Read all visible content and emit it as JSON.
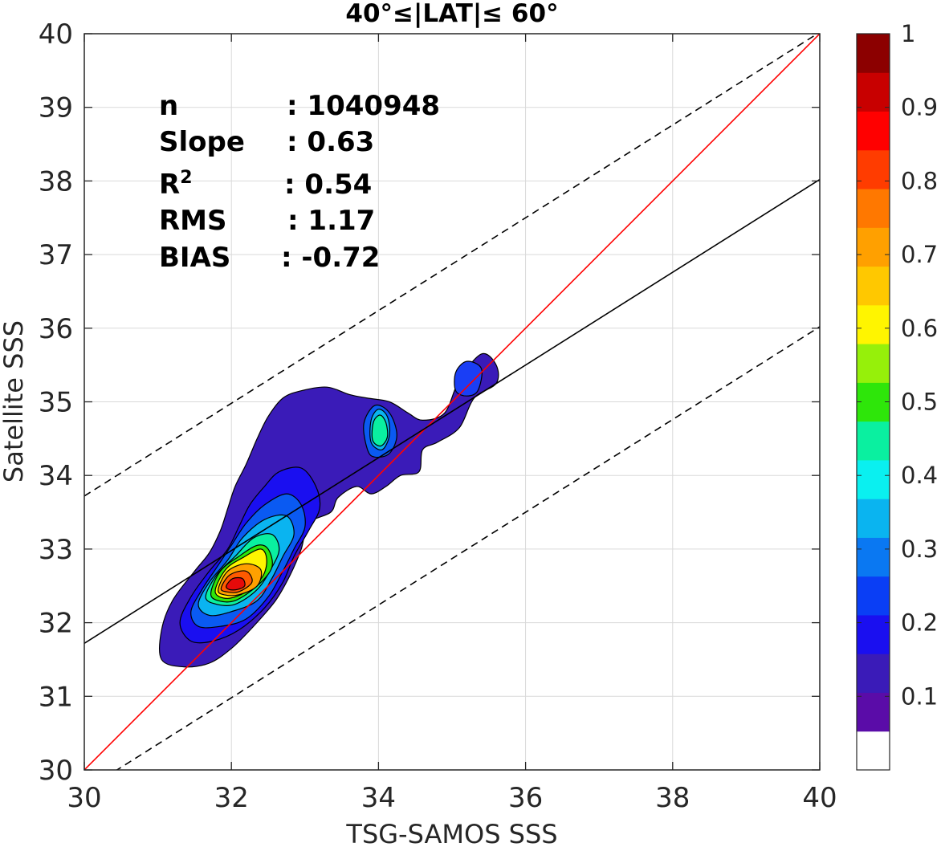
{
  "chart_data": {
    "type": "contour",
    "title": "40°≤|LAT|≤ 60°",
    "xlabel": "TSG-SAMOS SSS",
    "ylabel": "Satellite SSS",
    "xlim": [
      30,
      40
    ],
    "ylim": [
      30,
      40
    ],
    "xticks": [
      "30",
      "32",
      "34",
      "36",
      "38",
      "40"
    ],
    "yticks": [
      "30",
      "31",
      "32",
      "33",
      "34",
      "35",
      "36",
      "37",
      "38",
      "39",
      "40"
    ],
    "grid": true,
    "stats": [
      {
        "label": "n",
        "value": ": 1040948"
      },
      {
        "label": "Slope",
        "value": ": 0.63"
      },
      {
        "label": "R",
        "sup": "2",
        "value": ": 0.54"
      },
      {
        "label": "RMS",
        "value": ": 1.17"
      },
      {
        "label": "BIAS",
        "value": ": -0.72"
      }
    ],
    "lines": [
      {
        "role": "one-to-one",
        "color": "#ff0000",
        "style": "solid",
        "slope": 1.0,
        "intercept": 0
      },
      {
        "role": "regression",
        "color": "#000000",
        "style": "solid",
        "slope": 0.63,
        "intercept": 12.82
      },
      {
        "role": "upper-bound",
        "color": "#000000",
        "style": "dashed",
        "slope": 0.63,
        "intercept": 14.82
      },
      {
        "role": "lower-bound",
        "color": "#000000",
        "style": "dashed",
        "slope": 0.63,
        "intercept": 10.82
      }
    ],
    "contours": [
      {
        "level": 0.05,
        "color": "#3a1bb8",
        "points": [
          [
            31.05,
            31.9
          ],
          [
            31.2,
            32.3
          ],
          [
            31.5,
            32.7
          ],
          [
            31.7,
            32.95
          ],
          [
            31.85,
            33.25
          ],
          [
            31.95,
            33.55
          ],
          [
            32.05,
            33.85
          ],
          [
            32.2,
            34.15
          ],
          [
            32.35,
            34.5
          ],
          [
            32.5,
            34.8
          ],
          [
            32.7,
            35.05
          ],
          [
            32.95,
            35.15
          ],
          [
            33.3,
            35.2
          ],
          [
            33.6,
            35.1
          ],
          [
            33.85,
            35.05
          ],
          [
            34.15,
            35.0
          ],
          [
            34.4,
            34.85
          ],
          [
            34.6,
            34.75
          ],
          [
            34.9,
            34.85
          ],
          [
            35.1,
            35.3
          ],
          [
            35.4,
            35.65
          ],
          [
            35.6,
            35.5
          ],
          [
            35.6,
            35.25
          ],
          [
            35.3,
            35.05
          ],
          [
            35.1,
            34.65
          ],
          [
            34.8,
            34.45
          ],
          [
            34.6,
            34.35
          ],
          [
            34.55,
            34.05
          ],
          [
            34.3,
            34.0
          ],
          [
            34.1,
            33.85
          ],
          [
            33.9,
            33.75
          ],
          [
            33.7,
            33.85
          ],
          [
            33.45,
            33.7
          ],
          [
            33.35,
            33.5
          ],
          [
            33.05,
            33.35
          ],
          [
            32.95,
            33.0
          ],
          [
            32.8,
            32.65
          ],
          [
            32.6,
            32.3
          ],
          [
            32.3,
            31.95
          ],
          [
            32.0,
            31.65
          ],
          [
            31.7,
            31.45
          ],
          [
            31.35,
            31.4
          ],
          [
            31.05,
            31.5
          ]
        ]
      },
      {
        "level": 0.1,
        "color": "#1a0ff0",
        "points": [
          [
            31.3,
            32.0
          ],
          [
            31.45,
            32.35
          ],
          [
            31.7,
            32.7
          ],
          [
            31.95,
            33.0
          ],
          [
            32.1,
            33.3
          ],
          [
            32.25,
            33.6
          ],
          [
            32.45,
            33.85
          ],
          [
            32.65,
            34.05
          ],
          [
            32.95,
            34.1
          ],
          [
            33.15,
            33.85
          ],
          [
            33.2,
            33.55
          ],
          [
            33.05,
            33.25
          ],
          [
            32.85,
            32.9
          ],
          [
            32.7,
            32.55
          ],
          [
            32.45,
            32.2
          ],
          [
            32.1,
            31.9
          ],
          [
            31.75,
            31.75
          ],
          [
            31.45,
            31.75
          ]
        ]
      },
      {
        "level": 0.2,
        "color": "#0a5af2",
        "points": [
          [
            31.45,
            32.15
          ],
          [
            31.6,
            32.45
          ],
          [
            31.8,
            32.75
          ],
          [
            32.0,
            33.05
          ],
          [
            32.2,
            33.35
          ],
          [
            32.45,
            33.6
          ],
          [
            32.75,
            33.75
          ],
          [
            32.95,
            33.6
          ],
          [
            33.0,
            33.3
          ],
          [
            32.85,
            33.0
          ],
          [
            32.7,
            32.7
          ],
          [
            32.5,
            32.35
          ],
          [
            32.2,
            32.05
          ],
          [
            31.85,
            31.95
          ],
          [
            31.55,
            31.95
          ]
        ]
      },
      {
        "level": 0.3,
        "color": "#0ab4f0",
        "points": [
          [
            31.55,
            32.25
          ],
          [
            31.7,
            32.55
          ],
          [
            31.95,
            32.85
          ],
          [
            32.15,
            33.15
          ],
          [
            32.45,
            33.4
          ],
          [
            32.75,
            33.45
          ],
          [
            32.85,
            33.2
          ],
          [
            32.7,
            32.9
          ],
          [
            32.55,
            32.6
          ],
          [
            32.35,
            32.3
          ],
          [
            32.0,
            32.15
          ],
          [
            31.7,
            32.1
          ]
        ]
      },
      {
        "level": 0.4,
        "color": "#0af0a0",
        "points": [
          [
            31.65,
            32.35
          ],
          [
            31.8,
            32.65
          ],
          [
            32.05,
            32.9
          ],
          [
            32.3,
            33.15
          ],
          [
            32.55,
            33.2
          ],
          [
            32.65,
            33.0
          ],
          [
            32.55,
            32.75
          ],
          [
            32.35,
            32.45
          ],
          [
            32.05,
            32.25
          ],
          [
            31.8,
            32.25
          ]
        ]
      },
      {
        "level": 0.5,
        "color": "#2ee60a",
        "points": [
          [
            31.72,
            32.4
          ],
          [
            31.85,
            32.7
          ],
          [
            32.1,
            32.9
          ],
          [
            32.35,
            33.05
          ],
          [
            32.5,
            33.0
          ],
          [
            32.55,
            32.75
          ],
          [
            32.35,
            32.5
          ],
          [
            32.05,
            32.3
          ],
          [
            31.82,
            32.3
          ]
        ]
      },
      {
        "level": 0.6,
        "color": "#fff500",
        "points": [
          [
            31.78,
            32.42
          ],
          [
            31.92,
            32.72
          ],
          [
            32.15,
            32.88
          ],
          [
            32.4,
            33.0
          ],
          [
            32.48,
            32.85
          ],
          [
            32.42,
            32.62
          ],
          [
            32.2,
            32.42
          ],
          [
            31.95,
            32.33
          ]
        ]
      },
      {
        "level": 0.7,
        "color": "#ffa000",
        "points": [
          [
            31.82,
            32.45
          ],
          [
            31.95,
            32.7
          ],
          [
            32.2,
            32.8
          ],
          [
            32.4,
            32.72
          ],
          [
            32.35,
            32.5
          ],
          [
            32.1,
            32.38
          ],
          [
            31.9,
            32.38
          ]
        ]
      },
      {
        "level": 0.8,
        "color": "#ff5a00",
        "points": [
          [
            31.86,
            32.47
          ],
          [
            31.98,
            32.65
          ],
          [
            32.2,
            32.7
          ],
          [
            32.28,
            32.55
          ],
          [
            32.1,
            32.42
          ],
          [
            31.93,
            32.42
          ]
        ]
      },
      {
        "level": 0.9,
        "color": "#e60a0a",
        "points": [
          [
            31.93,
            32.5
          ],
          [
            32.02,
            32.6
          ],
          [
            32.15,
            32.6
          ],
          [
            32.18,
            32.5
          ],
          [
            32.08,
            32.45
          ],
          [
            31.97,
            32.45
          ]
        ]
      },
      {
        "level": 0.2,
        "color": "#0a5af2",
        "points": [
          [
            33.85,
            34.35
          ],
          [
            33.8,
            34.7
          ],
          [
            33.95,
            34.95
          ],
          [
            34.15,
            34.85
          ],
          [
            34.25,
            34.55
          ],
          [
            34.15,
            34.3
          ],
          [
            33.95,
            34.25
          ]
        ]
      },
      {
        "level": 0.3,
        "color": "#0ab4f0",
        "points": [
          [
            33.9,
            34.45
          ],
          [
            33.9,
            34.75
          ],
          [
            34.0,
            34.9
          ],
          [
            34.12,
            34.8
          ],
          [
            34.15,
            34.55
          ],
          [
            34.05,
            34.35
          ]
        ]
      },
      {
        "level": 0.4,
        "color": "#0af0a0",
        "points": [
          [
            33.92,
            34.48
          ],
          [
            33.93,
            34.72
          ],
          [
            34.02,
            34.82
          ],
          [
            34.1,
            34.72
          ],
          [
            34.12,
            34.52
          ],
          [
            34.03,
            34.4
          ]
        ]
      },
      {
        "level": 0.15,
        "color": "#1a3ef5",
        "points": [
          [
            35.05,
            35.15
          ],
          [
            35.05,
            35.4
          ],
          [
            35.2,
            35.55
          ],
          [
            35.4,
            35.45
          ],
          [
            35.35,
            35.15
          ],
          [
            35.2,
            35.08
          ]
        ]
      }
    ],
    "colorbar": {
      "ticks": [
        "0.1",
        "0.2",
        "0.3",
        "0.4",
        "0.5",
        "0.6",
        "0.7",
        "0.8",
        "0.9",
        "1"
      ],
      "tick_values": [
        0.1,
        0.2,
        0.3,
        0.4,
        0.5,
        0.6,
        0.7,
        0.8,
        0.9,
        1.0
      ],
      "range": [
        0,
        1
      ],
      "colors": [
        "#ffffff",
        "#5a0ca8",
        "#3a1bb8",
        "#1a0ff0",
        "#0a3ef5",
        "#0a78f2",
        "#0ab4f0",
        "#0af0f0",
        "#0af0a0",
        "#2ee60a",
        "#96f00a",
        "#fff500",
        "#ffc800",
        "#ffa000",
        "#ff7800",
        "#ff3c00",
        "#ff0000",
        "#c80000",
        "#8c0000"
      ]
    }
  }
}
